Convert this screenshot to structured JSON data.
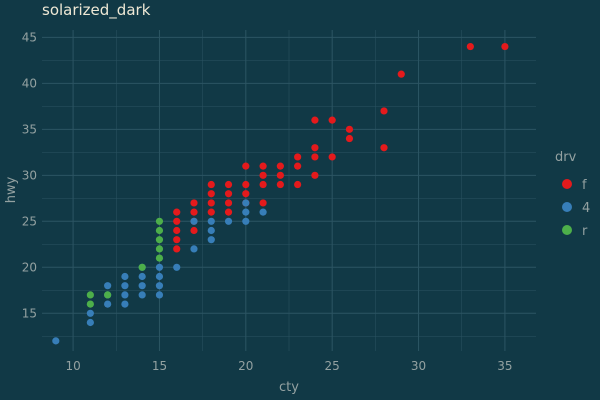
{
  "chart_data": {
    "type": "scatter",
    "title": "solarized_dark",
    "xlabel": "cty",
    "ylabel": "hwy",
    "xlim": [
      8.2,
      36.8
    ],
    "ylim": [
      10.9,
      45.8
    ],
    "x_ticks": [
      10,
      15,
      20,
      25,
      30,
      35
    ],
    "y_ticks": [
      15,
      20,
      25,
      30,
      35,
      40,
      45
    ],
    "grid": true,
    "legend": {
      "title": "drv",
      "placement": "right"
    },
    "colors": {
      "background": "#113946",
      "grid": "#2c5563",
      "text": "#93a1a1",
      "title": "#eee8d5"
    },
    "series": [
      {
        "name": "f",
        "color": "#e41a1c",
        "points": [
          [
            35,
            44
          ],
          [
            33,
            44
          ],
          [
            29,
            41
          ],
          [
            28,
            37
          ],
          [
            28,
            33
          ],
          [
            26,
            35
          ],
          [
            26,
            34
          ],
          [
            25,
            36
          ],
          [
            25,
            32
          ],
          [
            24,
            36
          ],
          [
            24,
            33
          ],
          [
            24,
            32
          ],
          [
            24,
            30
          ],
          [
            23,
            32
          ],
          [
            23,
            31
          ],
          [
            23,
            29
          ],
          [
            22,
            31
          ],
          [
            22,
            30
          ],
          [
            22,
            29
          ],
          [
            21,
            31
          ],
          [
            21,
            30
          ],
          [
            21,
            29
          ],
          [
            21,
            27
          ],
          [
            20,
            31
          ],
          [
            20,
            29
          ],
          [
            20,
            28
          ],
          [
            20,
            27
          ],
          [
            19,
            29
          ],
          [
            19,
            28
          ],
          [
            19,
            27
          ],
          [
            19,
            26
          ],
          [
            18,
            29
          ],
          [
            18,
            28
          ],
          [
            18,
            27
          ],
          [
            18,
            26
          ],
          [
            17,
            27
          ],
          [
            17,
            26
          ],
          [
            17,
            25
          ],
          [
            17,
            24
          ],
          [
            16,
            26
          ],
          [
            16,
            25
          ],
          [
            16,
            24
          ],
          [
            16,
            23
          ],
          [
            16,
            22
          ]
        ]
      },
      {
        "name": "4",
        "color": "#377eb8",
        "points": [
          [
            21,
            26
          ],
          [
            20,
            27
          ],
          [
            20,
            26
          ],
          [
            20,
            25
          ],
          [
            19,
            25
          ],
          [
            18,
            25
          ],
          [
            18,
            24
          ],
          [
            18,
            23
          ],
          [
            17,
            25
          ],
          [
            17,
            22
          ],
          [
            16,
            20
          ],
          [
            15,
            20
          ],
          [
            15,
            19
          ],
          [
            15,
            18
          ],
          [
            15,
            17
          ],
          [
            14,
            20
          ],
          [
            14,
            19
          ],
          [
            14,
            18
          ],
          [
            14,
            17
          ],
          [
            13,
            19
          ],
          [
            13,
            18
          ],
          [
            13,
            17
          ],
          [
            13,
            16
          ],
          [
            12,
            18
          ],
          [
            12,
            17
          ],
          [
            12,
            16
          ],
          [
            11,
            15
          ],
          [
            11,
            14
          ],
          [
            9,
            12
          ]
        ]
      },
      {
        "name": "r",
        "color": "#4daf4a",
        "points": [
          [
            15,
            25
          ],
          [
            15,
            24
          ],
          [
            15,
            23
          ],
          [
            15,
            22
          ],
          [
            15,
            21
          ],
          [
            14,
            20
          ],
          [
            12,
            17
          ],
          [
            11,
            17
          ],
          [
            11,
            16
          ]
        ]
      }
    ]
  }
}
